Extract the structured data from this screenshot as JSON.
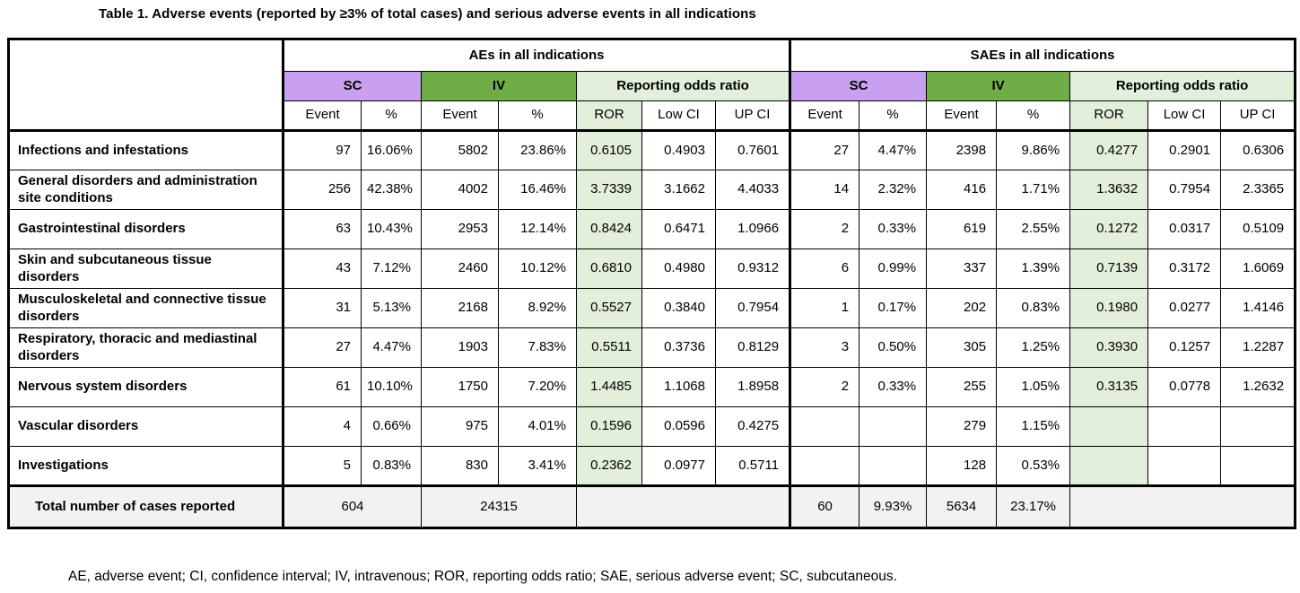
{
  "title": "Table 1. Adverse events (reported by ≥3% of total cases) and serious adverse events in all indications",
  "header": {
    "ae_group": "AEs in all indications",
    "sae_group": "SAEs in all indications",
    "sc_label": "SC",
    "iv_label": "IV",
    "ror_group": "Reporting odds ratio",
    "columns": [
      "Event",
      "%",
      "Event",
      "%",
      "ROR",
      "Low CI",
      "UP CI"
    ]
  },
  "rows": [
    {
      "label": "Infections and infestations",
      "ae": [
        "97",
        "16.06%",
        "5802",
        "23.86%",
        "0.6105",
        "0.4903",
        "0.7601"
      ],
      "sae": [
        "27",
        "4.47%",
        "2398",
        "9.86%",
        "0.4277",
        "0.2901",
        "0.6306"
      ]
    },
    {
      "label": "General disorders and administration site conditions",
      "ae": [
        "256",
        "42.38%",
        "4002",
        "16.46%",
        "3.7339",
        "3.1662",
        "4.4033"
      ],
      "sae": [
        "14",
        "2.32%",
        "416",
        "1.71%",
        "1.3632",
        "0.7954",
        "2.3365"
      ]
    },
    {
      "label": "Gastrointestinal disorders",
      "ae": [
        "63",
        "10.43%",
        "2953",
        "12.14%",
        "0.8424",
        "0.6471",
        "1.0966"
      ],
      "sae": [
        "2",
        "0.33%",
        "619",
        "2.55%",
        "0.1272",
        "0.0317",
        "0.5109"
      ]
    },
    {
      "label": "Skin and subcutaneous tissue disorders",
      "ae": [
        "43",
        "7.12%",
        "2460",
        "10.12%",
        "0.6810",
        "0.4980",
        "0.9312"
      ],
      "sae": [
        "6",
        "0.99%",
        "337",
        "1.39%",
        "0.7139",
        "0.3172",
        "1.6069"
      ]
    },
    {
      "label": "Musculoskeletal and connective tissue disorders",
      "ae": [
        "31",
        "5.13%",
        "2168",
        "8.92%",
        "0.5527",
        "0.3840",
        "0.7954"
      ],
      "sae": [
        "1",
        "0.17%",
        "202",
        "0.83%",
        "0.1980",
        "0.0277",
        "1.4146"
      ]
    },
    {
      "label": "Respiratory, thoracic and mediastinal disorders",
      "ae": [
        "27",
        "4.47%",
        "1903",
        "7.83%",
        "0.5511",
        "0.3736",
        "0.8129"
      ],
      "sae": [
        "3",
        "0.50%",
        "305",
        "1.25%",
        "0.3930",
        "0.1257",
        "1.2287"
      ]
    },
    {
      "label": "Nervous system disorders",
      "ae": [
        "61",
        "10.10%",
        "1750",
        "7.20%",
        "1.4485",
        "1.1068",
        "1.8958"
      ],
      "sae": [
        "2",
        "0.33%",
        "255",
        "1.05%",
        "0.3135",
        "0.0778",
        "1.2632"
      ]
    },
    {
      "label": "Vascular disorders",
      "ae": [
        "4",
        "0.66%",
        "975",
        "4.01%",
        "0.1596",
        "0.0596",
        "0.4275"
      ],
      "sae": [
        "",
        "",
        "279",
        "1.15%",
        "",
        "",
        ""
      ]
    },
    {
      "label": "Investigations",
      "ae": [
        "5",
        "0.83%",
        "830",
        "3.41%",
        "0.2362",
        "0.0977",
        "0.5711"
      ],
      "sae": [
        "",
        "",
        "128",
        "0.53%",
        "",
        "",
        ""
      ]
    }
  ],
  "total_row": {
    "label": "Total number of cases reported",
    "ae_sc_total": "604",
    "ae_iv_total": "24315",
    "sae_cells": [
      "60",
      "9.93%",
      "5634",
      "23.17%"
    ]
  },
  "footnote": "AE, adverse event; CI, confidence interval; IV, intravenous; ROR, reporting odds ratio; SAE, serious adverse event; SC, subcutaneous.",
  "colors": {
    "sc_header_bg": "#c9a0f0",
    "iv_header_bg": "#70ad47",
    "ror_bg": "#e2efda",
    "total_row_bg": "#f2f2f2",
    "border": "#000000"
  }
}
